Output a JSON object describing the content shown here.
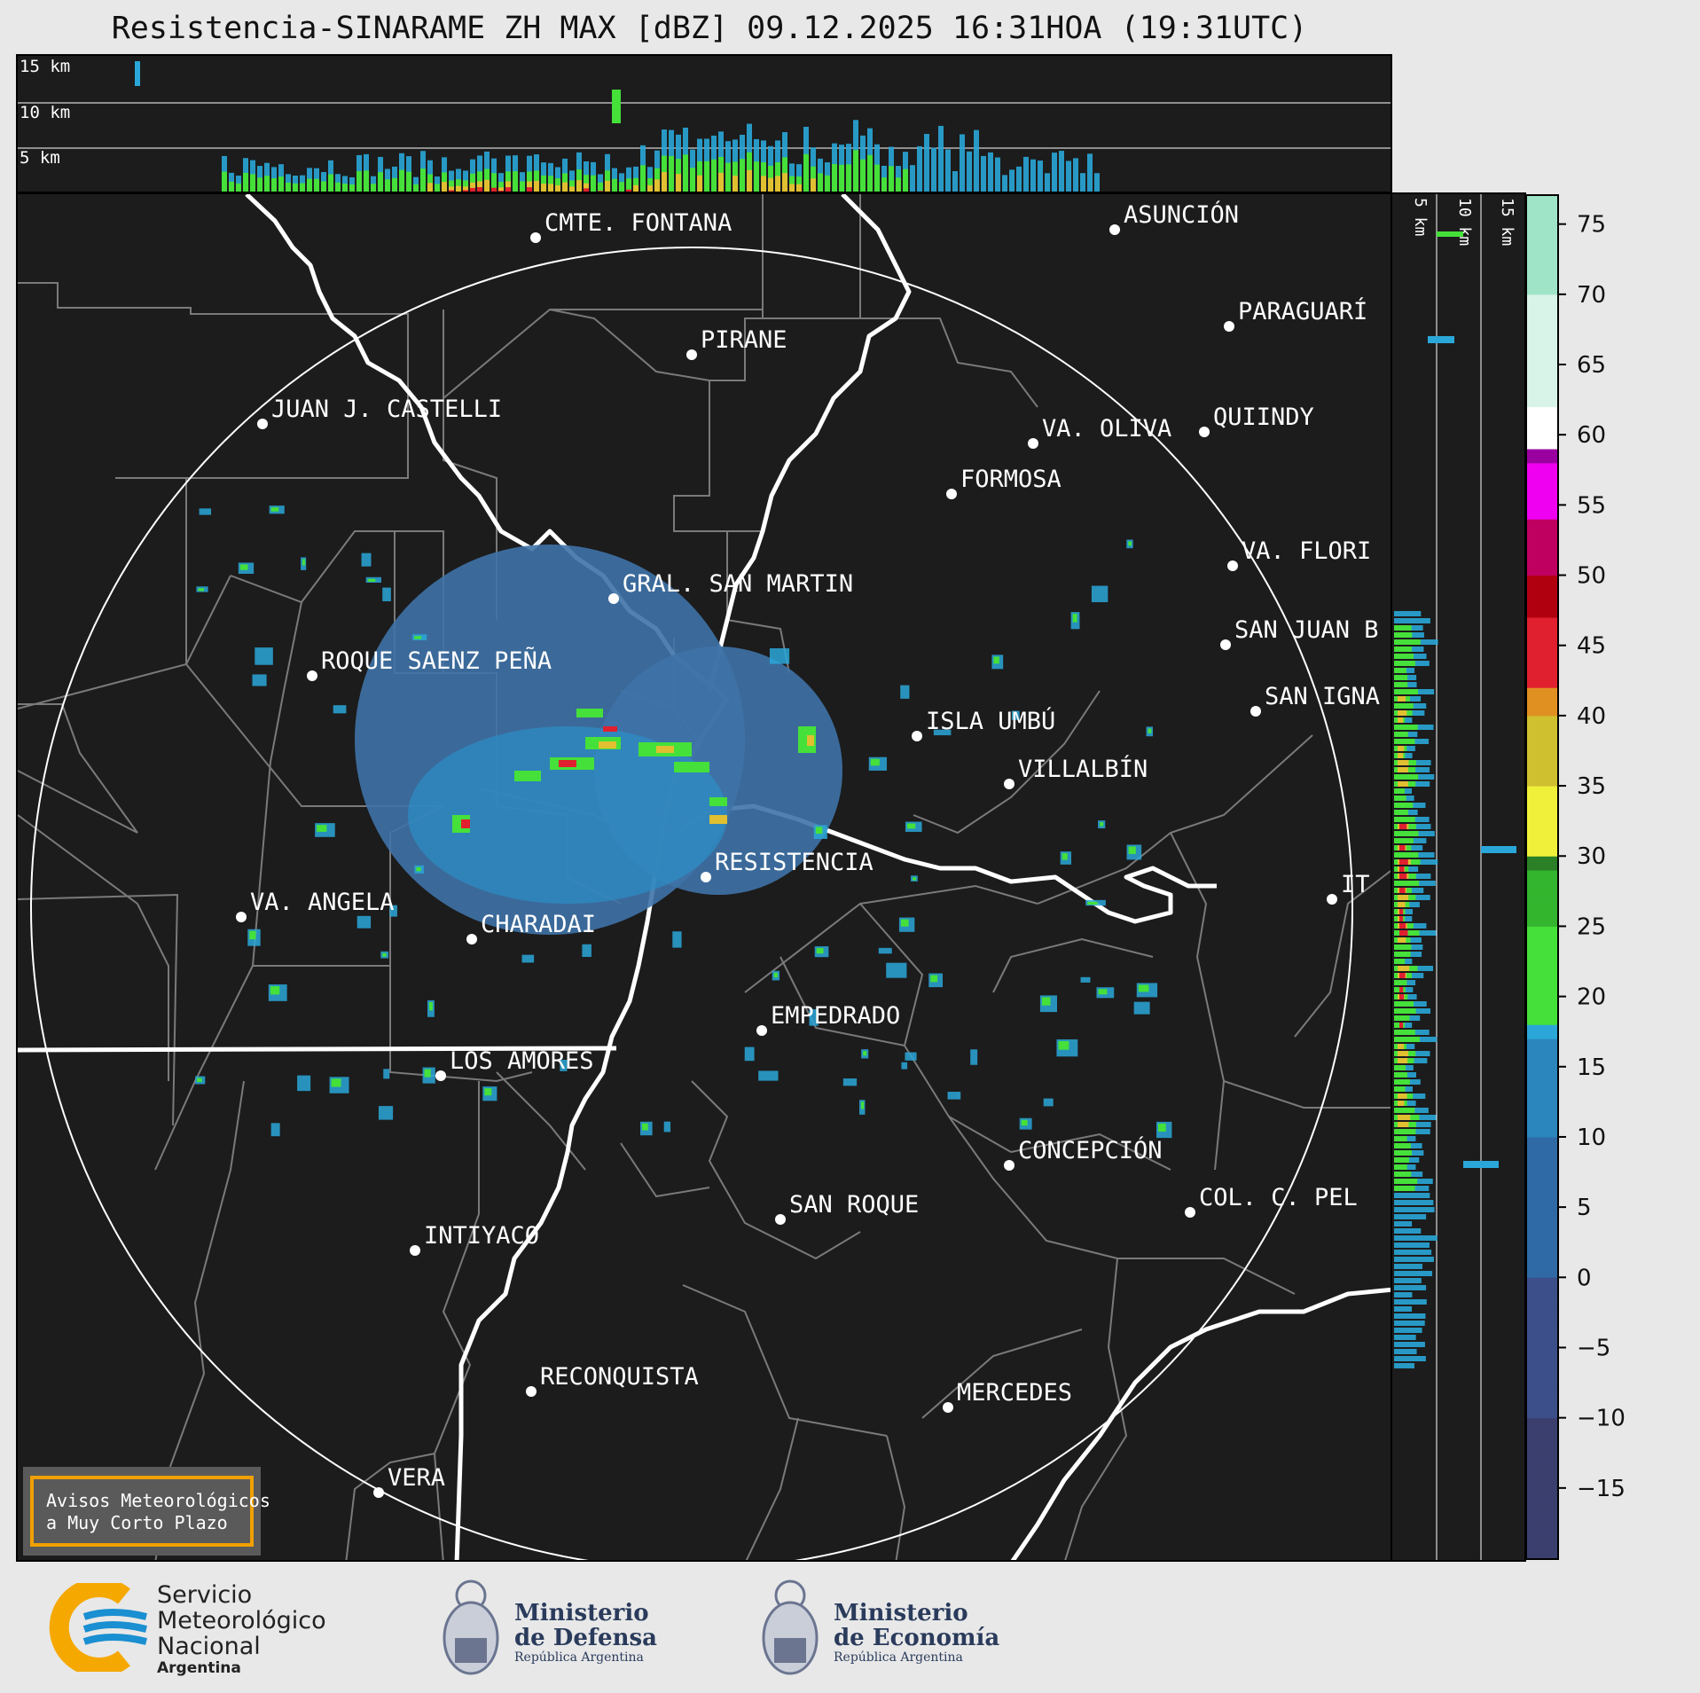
{
  "title": "Resistencia-SINARAME ZH MAX [dBZ] 09.12.2025 16:31HOA (19:31UTC)",
  "height_labels": [
    "15 km",
    "10 km",
    "5 km"
  ],
  "cities": [
    {
      "name": "CMTE. FONTANA"
    },
    {
      "name": "ASUNCIÓN"
    },
    {
      "name": "PIRANE"
    },
    {
      "name": "PARAGUARÍ"
    },
    {
      "name": "JUAN J. CASTELLI"
    },
    {
      "name": "VA. OLIVA"
    },
    {
      "name": "QUIINDY"
    },
    {
      "name": "FORMOSA"
    },
    {
      "name": "VA. FLORI"
    },
    {
      "name": "GRAL. SAN MARTIN"
    },
    {
      "name": "SAN JUAN B"
    },
    {
      "name": "ROQUE SAENZ PEÑA"
    },
    {
      "name": "SAN IGNA"
    },
    {
      "name": "ISLA UMBÚ"
    },
    {
      "name": "VILLALBÍN"
    },
    {
      "name": "RESISTENCIA"
    },
    {
      "name": "IT"
    },
    {
      "name": "VA. ANGELA"
    },
    {
      "name": "CHARADAI"
    },
    {
      "name": "EMPEDRADO"
    },
    {
      "name": "LOS AMORES"
    },
    {
      "name": "CONCEPCIÓN"
    },
    {
      "name": "SAN ROQUE"
    },
    {
      "name": "COL. C. PEL"
    },
    {
      "name": "INTIYACO"
    },
    {
      "name": "RECONQUISTA"
    },
    {
      "name": "MERCEDES"
    },
    {
      "name": "VERA"
    }
  ],
  "colorbar": {
    "tick_labels": [
      "75",
      "70",
      "65",
      "60",
      "55",
      "50",
      "45",
      "40",
      "35",
      "30",
      "25",
      "20",
      "15",
      "10",
      "5",
      "0",
      "−5",
      "−10",
      "−15"
    ],
    "min": -20,
    "max": 77
  },
  "notice": {
    "line1": "Avisos Meteorológicos",
    "line2": "a Muy Corto Plazo"
  },
  "logos": {
    "smn": {
      "line1": "Servicio",
      "line2": "Meteorológico",
      "line3": "Nacional",
      "line4": "Argentina"
    },
    "defensa": {
      "line1": "Ministerio",
      "line2": "de Defensa",
      "line3": "República Argentina"
    },
    "economia": {
      "line1": "Ministerio",
      "line2": "de Economía",
      "line3": "República Argentina"
    }
  }
}
